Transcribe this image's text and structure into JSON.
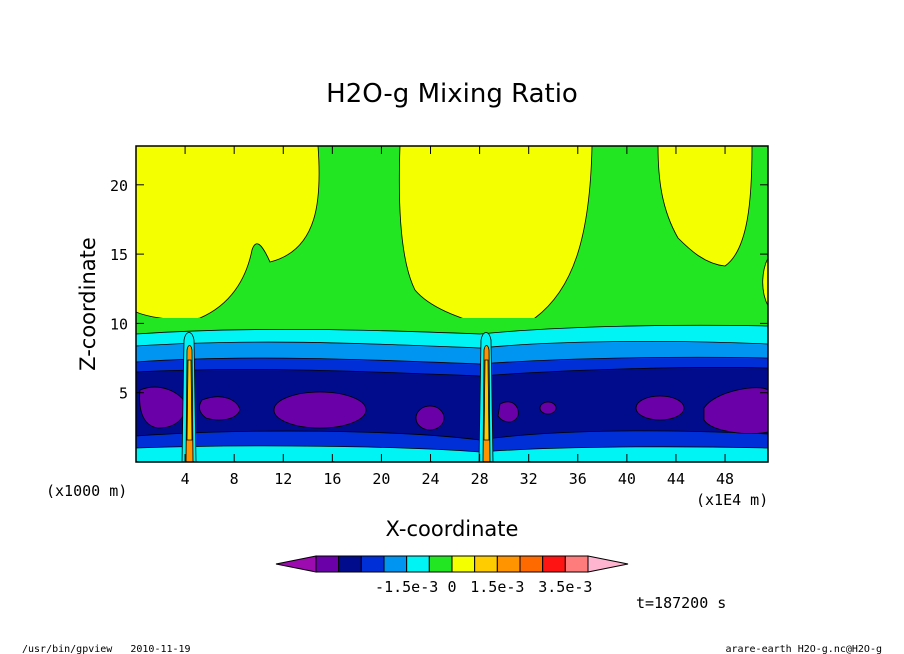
{
  "chart_data": {
    "type": "contour",
    "title": "H2O-g Mixing Ratio",
    "xlabel": "X-coordinate",
    "ylabel": "Z-coordinate",
    "x_unit": "(x1E4 m)",
    "y_unit": "(x1000 m)",
    "xlim": [
      0,
      51.5
    ],
    "ylim": [
      0,
      22.8
    ],
    "x_ticks": [
      "4",
      "8",
      "12",
      "16",
      "20",
      "24",
      "28",
      "32",
      "36",
      "40",
      "44",
      "48"
    ],
    "y_ticks": [
      "5",
      "10",
      "15",
      "20"
    ],
    "timestamp": "t=187200 s",
    "colorbar": {
      "colors": [
        "#9b0bb0",
        "#6a00a8",
        "#000c8c",
        "#002fd8",
        "#0095f0",
        "#00f4f4",
        "#22e622",
        "#f4ff00",
        "#ffcc00",
        "#ff9400",
        "#ff6a00",
        "#ff1414",
        "#ff7c7c",
        "#ffb4d0"
      ],
      "labels": [
        "-1.5e-3",
        "0",
        "1.5e-3",
        "3.5e-3"
      ]
    }
  },
  "footer": {
    "left": "/usr/bin/gpview   2010-11-19",
    "right": "arare-earth_H2O-g.nc@H2O-g"
  }
}
